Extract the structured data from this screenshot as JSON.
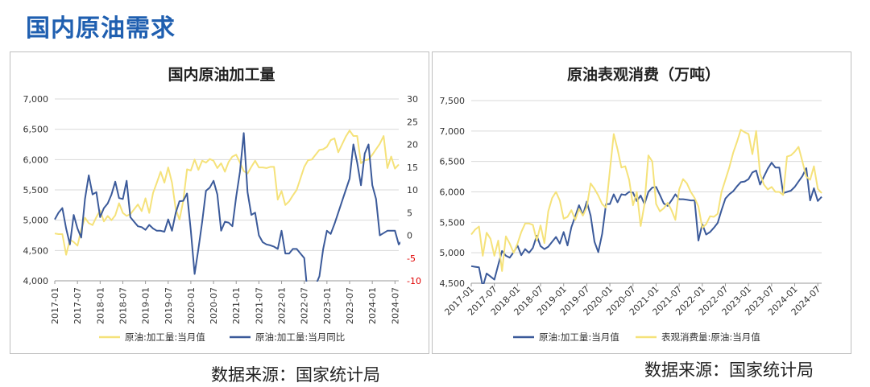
{
  "page": {
    "title": "国内原油需求"
  },
  "source_left": "数据来源：国家统计局",
  "source_right": "数据来源：国家统计局",
  "colors": {
    "yellow": "#F5E27A",
    "blue": "#3B5A9A",
    "axis": "#999999",
    "grid": "#d9d9d9",
    "neg": "#e00000",
    "text": "#333333"
  },
  "chart_data": [
    {
      "type": "line",
      "title": "国内原油加工量",
      "x_tick_labels": [
        "2017-01",
        "2017-07",
        "2018-01",
        "2018-07",
        "2019-01",
        "2019-07",
        "2020-01",
        "2020-07",
        "2021-01",
        "2021-07",
        "2022-01",
        "2022-07",
        "2023-01",
        "2023-07",
        "2024-01",
        "2024-07"
      ],
      "ylim": [
        4000,
        7000
      ],
      "y_ticks": [
        4000,
        4500,
        5000,
        5500,
        6000,
        6500,
        7000
      ],
      "y_tick_labels": [
        "4,000",
        "4,500",
        "5,000",
        "5,500",
        "6,000",
        "6,500",
        "7,000"
      ],
      "y2lim": [
        -10,
        30
      ],
      "y2_ticks": [
        -10,
        -5,
        0,
        5,
        10,
        15,
        20,
        25,
        30
      ],
      "y2_tick_labels": [
        "-10",
        "-5",
        "0",
        "5",
        "10",
        "15",
        "20",
        "25",
        "30"
      ],
      "series": [
        {
          "name": "原油:加工量:当月值",
          "axis": "left",
          "color": "#F5E27A",
          "values": [
            4780,
            4770,
            4770,
            4430,
            4680,
            4640,
            4580,
            4840,
            5040,
            4950,
            4920,
            5050,
            5160,
            4980,
            5070,
            5000,
            5080,
            5280,
            5120,
            5070,
            5100,
            5180,
            5260,
            5150,
            5360,
            5120,
            5450,
            5620,
            5800,
            5620,
            5870,
            5620,
            5180,
            5010,
            5320,
            5840,
            5820,
            6000,
            5830,
            5980,
            5950,
            6010,
            5980,
            5860,
            5940,
            5800,
            5960,
            6050,
            6080,
            5950,
            5810,
            5770,
            5880,
            5980,
            5870,
            5870,
            5860,
            5880,
            5880,
            5340,
            5480,
            5250,
            5310,
            5410,
            5500,
            5690,
            5880,
            5990,
            6000,
            6080,
            6160,
            6170,
            6210,
            6320,
            6350,
            6120,
            6250,
            6380,
            6480,
            6390,
            6390,
            5940,
            5990,
            6000,
            6080,
            6170,
            6260,
            6390,
            5860,
            6050,
            5850,
            5920
          ]
        },
        {
          "name": "原油:加工量:当月同比",
          "axis": "right",
          "color": "#3B5A9A",
          "values": [
            3.5,
            5,
            6,
            1.5,
            -2,
            4.5,
            1.5,
            -0.5,
            8,
            13.2,
            9,
            9.5,
            4,
            6,
            7,
            9,
            11.8,
            8.2,
            8,
            12,
            4,
            3,
            2,
            1.8,
            1.2,
            2.3,
            1.5,
            1,
            1,
            0.8,
            3.5,
            1,
            5,
            7.5,
            7.6,
            9.2,
            1,
            -8.5,
            -3,
            3,
            9.8,
            10.5,
            12,
            9,
            1,
            3,
            2.8,
            2,
            8.5,
            14,
            22.5,
            9.5,
            4.5,
            5,
            0,
            -1.5,
            -2,
            -2.2,
            -2.5,
            -3,
            1,
            -4,
            -4,
            -3,
            -3,
            -4,
            -5,
            -14,
            -12,
            -11,
            -9,
            -3,
            1,
            0.3,
            2.5,
            5,
            7.5,
            10,
            12.5,
            20,
            16,
            11,
            18,
            20,
            11,
            8,
            0,
            0.5,
            1,
            1,
            1,
            -2,
            -1,
            -4.5
          ]
        }
      ]
    },
    {
      "type": "line",
      "title": "原油表观消费（万吨）",
      "x_tick_labels": [
        "2017-01",
        "2017-07",
        "2018-01",
        "2018-07",
        "2019-01",
        "2019-07",
        "2020-01",
        "2020-07",
        "2021-01",
        "2021-07",
        "2022-01",
        "2022-07",
        "2023-01",
        "2023-07",
        "2024-01",
        "2024-07"
      ],
      "ylim": [
        4500,
        7500
      ],
      "y_ticks": [
        4500,
        5000,
        5500,
        6000,
        6500,
        7000,
        7500
      ],
      "y_tick_labels": [
        "4,500",
        "5,000",
        "5,500",
        "6,000",
        "6,500",
        "7,000",
        "7,500"
      ],
      "series": [
        {
          "name": "原油:加工量:当月值",
          "axis": "left",
          "color": "#3B5A9A",
          "values": [
            4780,
            4770,
            4760,
            4440,
            4660,
            4610,
            4560,
            4800,
            5030,
            4950,
            4920,
            5010,
            5120,
            4960,
            5060,
            5000,
            5080,
            5280,
            5110,
            5060,
            5100,
            5180,
            5260,
            5150,
            5340,
            5120,
            5420,
            5600,
            5780,
            5620,
            5840,
            5610,
            5180,
            5010,
            5310,
            5800,
            5800,
            5960,
            5830,
            5960,
            5950,
            6000,
            5990,
            5850,
            5940,
            5800,
            6000,
            6070,
            6080,
            5950,
            5810,
            5770,
            5860,
            5960,
            5880,
            5880,
            5870,
            5860,
            5860,
            5200,
            5470,
            5300,
            5340,
            5410,
            5490,
            5700,
            5890,
            5960,
            6010,
            6090,
            6160,
            6170,
            6210,
            6320,
            6350,
            6120,
            6250,
            6380,
            6480,
            6400,
            6400,
            5980,
            6000,
            6020,
            6080,
            6170,
            6260,
            6390,
            5860,
            6060,
            5850,
            5920
          ]
        },
        {
          "name": "表观消费量:原油:当月值",
          "axis": "left",
          "color": "#F5E27A",
          "values": [
            5300,
            5380,
            5430,
            4950,
            5330,
            5230,
            4950,
            5200,
            4700,
            5270,
            5150,
            5000,
            5150,
            5340,
            5480,
            5480,
            5460,
            5200,
            5450,
            5160,
            5680,
            5900,
            6000,
            5860,
            5560,
            5590,
            5700,
            5540,
            5720,
            5610,
            5750,
            6140,
            6050,
            5940,
            5800,
            5740,
            6350,
            6950,
            6700,
            6400,
            6420,
            6200,
            5780,
            6000,
            5440,
            5800,
            6600,
            6500,
            5800,
            5680,
            5730,
            5820,
            5700,
            5540,
            6040,
            6210,
            6140,
            6000,
            5900,
            5760,
            5410,
            5470,
            5600,
            5590,
            5640,
            6000,
            6200,
            6400,
            6640,
            6820,
            7020,
            6980,
            6950,
            6620,
            7000,
            6300,
            6120,
            6040,
            6080,
            6000,
            6000,
            5950,
            6580,
            6600,
            6660,
            6740,
            6500,
            6250,
            6200,
            6420,
            6050,
            5980
          ]
        }
      ]
    }
  ]
}
